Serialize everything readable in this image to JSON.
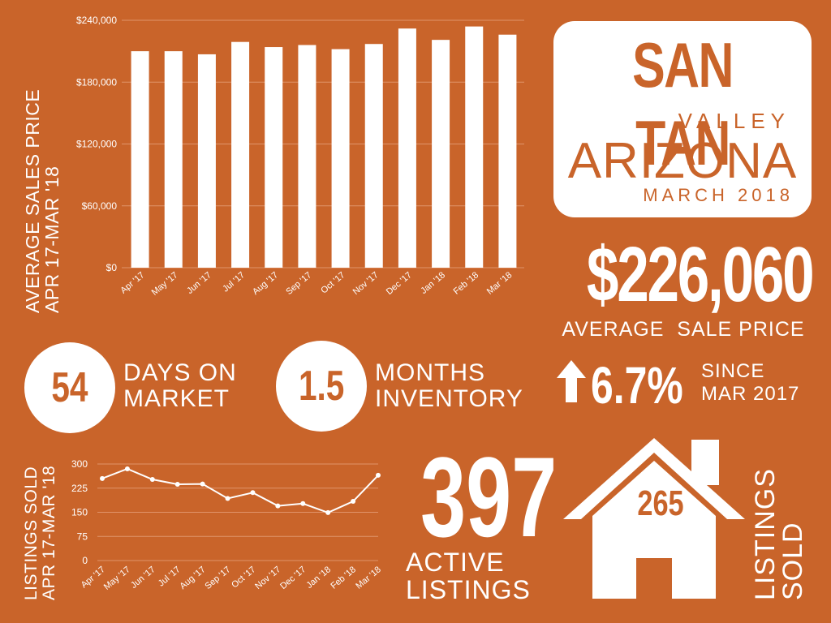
{
  "title_card": {
    "place": "SAN TAN",
    "valley": "VALLEY",
    "state": "ARIZONA",
    "date": "MARCH 2018"
  },
  "avg_price": {
    "value": "$226,060",
    "label": "AVERAGE  SALE PRICE"
  },
  "change": {
    "icon": "up-arrow-icon",
    "value": "6.7%",
    "since_line1": "SINCE",
    "since_line2": "MAR 2017"
  },
  "days_on_market": {
    "value": "54",
    "line1": "DAYS ON",
    "line2": "MARKET"
  },
  "months_inventory": {
    "value": "1.5",
    "line1": "MONTHS",
    "line2": "INVENTORY"
  },
  "active_listings": {
    "value": "397",
    "line1": "ACTIVE",
    "line2": "LISTINGS"
  },
  "sold": {
    "icon": "house-icon",
    "value": "265",
    "line1": "LISTINGS",
    "line2": "SOLD"
  },
  "colors": {
    "background": "#c9642a",
    "foreground": "#ffffff",
    "grid": "#e0946a"
  },
  "chart_data": [
    {
      "type": "bar",
      "ylabel_line1": "AVERAGE SALES PRICE",
      "ylabel_line2": "APR 17-MAR '18",
      "categories": [
        "Apr '17",
        "May '17",
        "Jun '17",
        "Jul '17",
        "Aug '17",
        "Sep '17",
        "Oct '17",
        "Nov '17",
        "Dec '17",
        "Jan '18",
        "Feb '18",
        "Mar '18"
      ],
      "values": [
        210000,
        210000,
        207000,
        219000,
        214000,
        216000,
        212000,
        217000,
        232000,
        221000,
        234000,
        226060
      ],
      "ylim": [
        0,
        240000
      ],
      "yticks": [
        0,
        60000,
        120000,
        180000,
        240000
      ],
      "ytick_labels": [
        "$0",
        "$60,000",
        "$120,000",
        "$180,000",
        "$240,000"
      ],
      "grid": true
    },
    {
      "type": "line",
      "ylabel_line1": "LISTINGS SOLD",
      "ylabel_line2": "APR 17-MAR '18",
      "categories": [
        "Apr '17",
        "May '17",
        "Jun '17",
        "Jul '17",
        "Aug '17",
        "Sep '17",
        "Oct '17",
        "Nov '17",
        "Dec '17",
        "Jan '18",
        "Feb '18",
        "Mar '18"
      ],
      "values": [
        255,
        285,
        252,
        237,
        238,
        193,
        211,
        170,
        177,
        149,
        184,
        265
      ],
      "ylim": [
        0,
        300
      ],
      "yticks": [
        0,
        75,
        150,
        225,
        300
      ],
      "ytick_labels": [
        "0",
        "75",
        "150",
        "225",
        "300"
      ],
      "grid": true
    }
  ]
}
